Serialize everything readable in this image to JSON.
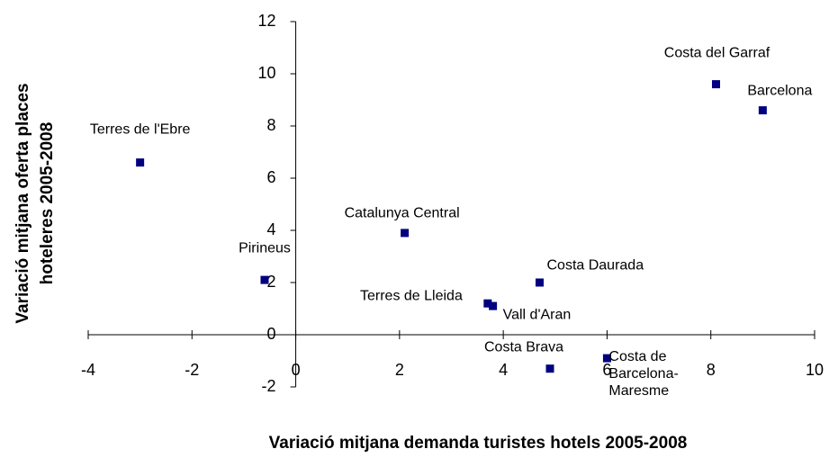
{
  "chart_data": {
    "type": "scatter",
    "xlabel": "Variació mitjana demanda turistes  hotels 2005-2008",
    "ylabel": [
      "Variació mitjana oferta places",
      "hoteleres 2005-2008"
    ],
    "labels": [
      "Terres de l'Ebre",
      "Pirineus",
      "Catalunya Central",
      "Terres de Lleida",
      "Vall d'Aran",
      "Costa Daurada",
      "Costa Brava",
      "Costa de Barcelona-Maresme",
      "Costa del Garraf",
      "Barcelona"
    ],
    "x": [
      -3.0,
      -0.6,
      2.1,
      3.7,
      3.8,
      4.7,
      4.9,
      6.0,
      8.1,
      9.0
    ],
    "values": [
      6.6,
      2.1,
      3.9,
      1.2,
      1.1,
      2.0,
      -1.3,
      -0.9,
      9.6,
      8.6
    ],
    "color": "#000080",
    "xlim": [
      -4,
      10
    ],
    "xticks": [
      -4,
      -2,
      0,
      2,
      4,
      6,
      8,
      10
    ],
    "ylim": [
      -2,
      12
    ],
    "yticks": [
      -2,
      0,
      2,
      4,
      6,
      8,
      10,
      12
    ]
  }
}
